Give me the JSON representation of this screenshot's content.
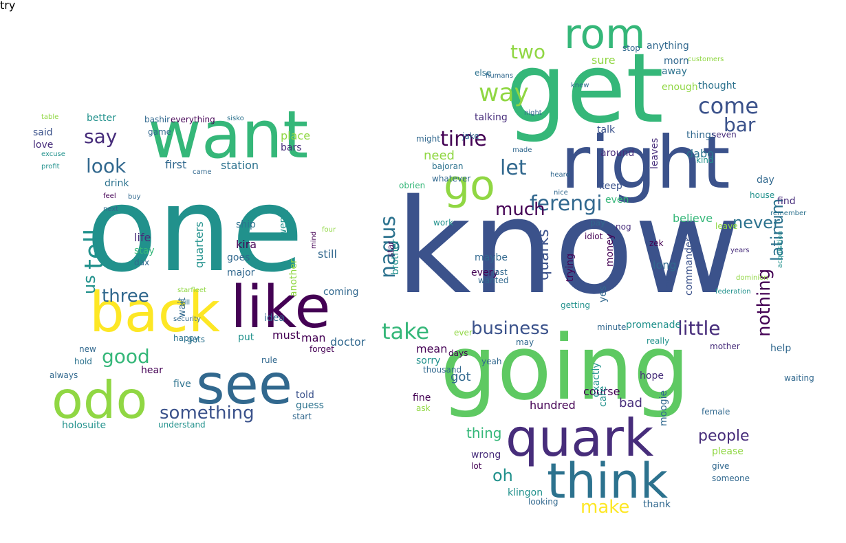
{
  "colors": {
    "background": "#ffffff",
    "palette": [
      "#3b528b",
      "#21918c",
      "#5ec962",
      "#fde725",
      "#440154",
      "#31688e",
      "#35b779",
      "#90d743",
      "#472d7b",
      "#2c728e"
    ]
  },
  "words": [
    {
      "text": "know",
      "color": 0
    },
    {
      "text": "one",
      "color": 1
    },
    {
      "text": "get",
      "color": 6
    },
    {
      "text": "going",
      "color": 2
    },
    {
      "text": "right",
      "color": 0
    },
    {
      "text": "want",
      "color": 6
    },
    {
      "text": "like",
      "color": 4
    },
    {
      "text": "back",
      "color": 3
    },
    {
      "text": "see",
      "color": 5
    },
    {
      "text": "odo",
      "color": 7
    },
    {
      "text": "quark",
      "color": 8
    },
    {
      "text": "think",
      "color": 9
    },
    {
      "text": "rom",
      "color": 6
    },
    {
      "text": "go",
      "color": 7
    },
    {
      "text": "ferengi",
      "color": 5
    },
    {
      "text": "time",
      "color": 4
    },
    {
      "text": "way",
      "color": 7
    },
    {
      "text": "come",
      "color": 0
    },
    {
      "text": "bar",
      "color": 0
    },
    {
      "text": "two",
      "color": 7
    },
    {
      "text": "let",
      "color": 5
    },
    {
      "text": "much",
      "color": 4
    },
    {
      "text": "never",
      "color": 9
    },
    {
      "text": "nagus",
      "color": 9
    },
    {
      "text": "take",
      "color": 6
    },
    {
      "text": "business",
      "color": 0
    },
    {
      "text": "little",
      "color": 8
    },
    {
      "text": "nothing",
      "color": 4
    },
    {
      "text": "latinum",
      "color": 9
    },
    {
      "text": "quarks",
      "color": 0
    },
    {
      "text": "say",
      "color": 8
    },
    {
      "text": "look",
      "color": 5
    },
    {
      "text": "tell",
      "color": 1
    },
    {
      "text": "us",
      "color": 1
    },
    {
      "text": "three",
      "color": 5
    },
    {
      "text": "good",
      "color": 6
    },
    {
      "text": "something",
      "color": 0
    },
    {
      "text": "make",
      "color": 3
    },
    {
      "text": "oh",
      "color": 1
    },
    {
      "text": "people",
      "color": 8
    },
    {
      "text": "thing",
      "color": 6
    },
    {
      "text": "need",
      "color": 7
    },
    {
      "text": "station",
      "color": 9
    },
    {
      "text": "first",
      "color": 5
    },
    {
      "text": "drink",
      "color": 9
    },
    {
      "text": "said",
      "color": 0
    },
    {
      "text": "love",
      "color": 8
    },
    {
      "text": "better",
      "color": 1
    },
    {
      "text": "place",
      "color": 7
    },
    {
      "text": "bars",
      "color": 8
    },
    {
      "text": "twenty",
      "color": 1
    },
    {
      "text": "quarters",
      "color": 1
    },
    {
      "text": "ship",
      "color": 9
    },
    {
      "text": "kira",
      "color": 4
    },
    {
      "text": "goes",
      "color": 5
    },
    {
      "text": "major",
      "color": 5
    },
    {
      "text": "life",
      "color": 8
    },
    {
      "text": "stay",
      "color": 6
    },
    {
      "text": "dax",
      "color": 5
    },
    {
      "text": "still",
      "color": 5
    },
    {
      "text": "another",
      "color": 7
    },
    {
      "text": "brother",
      "color": 1
    },
    {
      "text": "coming",
      "color": 5
    },
    {
      "text": "idea",
      "color": 5
    },
    {
      "text": "wait",
      "color": 5
    },
    {
      "text": "must",
      "color": 4
    },
    {
      "text": "man",
      "color": 4
    },
    {
      "text": "doctor",
      "color": 5
    },
    {
      "text": "put",
      "color": 1
    },
    {
      "text": "happy",
      "color": 9
    },
    {
      "text": "gets",
      "color": 9
    },
    {
      "text": "hear",
      "color": 4
    },
    {
      "text": "five",
      "color": 9
    },
    {
      "text": "told",
      "color": 0
    },
    {
      "text": "guess",
      "color": 9
    },
    {
      "text": "holosuite",
      "color": 1
    },
    {
      "text": "understand",
      "color": 1
    },
    {
      "text": "always",
      "color": 5
    },
    {
      "text": "new",
      "color": 5
    },
    {
      "text": "hold",
      "color": 9
    },
    {
      "text": "rule",
      "color": 5
    },
    {
      "text": "start",
      "color": 5
    },
    {
      "text": "mean",
      "color": 4
    },
    {
      "text": "sorry",
      "color": 1
    },
    {
      "text": "got",
      "color": 5
    },
    {
      "text": "fine",
      "color": 4
    },
    {
      "text": "ask",
      "color": 7
    },
    {
      "text": "wrong",
      "color": 8
    },
    {
      "text": "lot",
      "color": 4
    },
    {
      "text": "klingon",
      "color": 1
    },
    {
      "text": "looking",
      "color": 5
    },
    {
      "text": "hundred",
      "color": 4
    },
    {
      "text": "course",
      "color": 4
    },
    {
      "text": "care",
      "color": 1
    },
    {
      "text": "moogie",
      "color": 5
    },
    {
      "text": "exactly",
      "color": 1
    },
    {
      "text": "bad",
      "color": 8
    },
    {
      "text": "hope",
      "color": 8
    },
    {
      "text": "please",
      "color": 7
    },
    {
      "text": "give",
      "color": 5
    },
    {
      "text": "someone",
      "color": 5
    },
    {
      "text": "thank",
      "color": 5
    },
    {
      "text": "female",
      "color": 5
    },
    {
      "text": "help",
      "color": 5
    },
    {
      "text": "commander",
      "color": 0
    },
    {
      "text": "long",
      "color": 5
    },
    {
      "text": "ten",
      "color": 0
    },
    {
      "text": "believe",
      "color": 6
    },
    {
      "text": "find",
      "color": 8
    },
    {
      "text": "day",
      "color": 5
    },
    {
      "text": "keep",
      "color": 0
    },
    {
      "text": "even",
      "color": 6
    },
    {
      "text": "around",
      "color": 8
    },
    {
      "text": "dabo",
      "color": 9
    },
    {
      "text": "leaves",
      "color": 8
    },
    {
      "text": "things",
      "color": 5
    },
    {
      "text": "talk",
      "color": 0
    },
    {
      "text": "talking",
      "color": 8
    },
    {
      "text": "thought",
      "color": 9
    },
    {
      "text": "enough",
      "color": 7
    },
    {
      "text": "away",
      "color": 9
    },
    {
      "text": "morn",
      "color": 5
    },
    {
      "text": "sure",
      "color": 7
    },
    {
      "text": "anything",
      "color": 5
    },
    {
      "text": "stop",
      "color": 5
    },
    {
      "text": "else",
      "color": 9
    },
    {
      "text": "every",
      "color": 4
    },
    {
      "text": "maybe",
      "color": 5
    },
    {
      "text": "yes",
      "color": 5
    },
    {
      "text": "money",
      "color": 4
    },
    {
      "text": "trying",
      "color": 4
    },
    {
      "text": "promenade",
      "color": 1
    },
    {
      "text": "really",
      "color": 1
    },
    {
      "text": "work",
      "color": 1
    },
    {
      "text": "nog",
      "color": 8
    },
    {
      "text": "obrien",
      "color": 6
    },
    {
      "text": "might",
      "color": 5
    },
    {
      "text": "kind",
      "color": 1
    },
    {
      "text": "seven",
      "color": 8
    },
    {
      "text": "zek",
      "color": 4
    },
    {
      "text": "forget",
      "color": 4
    },
    {
      "text": "bashir",
      "color": 5
    },
    {
      "text": "everything",
      "color": 4
    },
    {
      "text": "sisko",
      "color": 9
    },
    {
      "text": "table",
      "color": 7
    },
    {
      "text": "excuse",
      "color": 1
    },
    {
      "text": "profit",
      "color": 1
    },
    {
      "text": "came",
      "color": 5
    },
    {
      "text": "next",
      "color": 5
    },
    {
      "text": "feel",
      "color": 4
    },
    {
      "text": "buy",
      "color": 5
    },
    {
      "text": "four",
      "color": 7
    },
    {
      "text": "mind",
      "color": 4
    },
    {
      "text": "starfleet",
      "color": 7
    },
    {
      "text": "kill",
      "color": 9
    },
    {
      "text": "security",
      "color": 5
    },
    {
      "text": "years",
      "color": 8
    },
    {
      "text": "federation",
      "color": 1
    },
    {
      "text": "acquisition",
      "color": 1
    },
    {
      "text": "whatever",
      "color": 5
    },
    {
      "text": "bajoran",
      "color": 9
    },
    {
      "text": "remember",
      "color": 9
    },
    {
      "text": "house",
      "color": 1
    },
    {
      "text": "getting",
      "color": 1
    },
    {
      "text": "heard",
      "color": 5
    },
    {
      "text": "nice",
      "color": 5
    },
    {
      "text": "humans",
      "color": 5
    },
    {
      "text": "knew",
      "color": 5
    },
    {
      "text": "made",
      "color": 5
    },
    {
      "text": "night",
      "color": 5
    },
    {
      "text": "jake",
      "color": 5
    },
    {
      "text": "leave",
      "color": 7
    },
    {
      "text": "ever",
      "color": 7
    },
    {
      "text": "days",
      "color": 4
    },
    {
      "text": "may",
      "color": 5
    },
    {
      "text": "yeah",
      "color": 5
    },
    {
      "text": "wanted",
      "color": 5
    },
    {
      "text": "last",
      "color": 5
    },
    {
      "text": "minute",
      "color": 5
    },
    {
      "text": "thousand",
      "color": 5
    },
    {
      "text": "mother",
      "color": 8
    },
    {
      "text": "waiting",
      "color": 5
    },
    {
      "text": "pay",
      "color": 5
    },
    {
      "text": "idiot",
      "color": 4
    },
    {
      "text": "star",
      "color": 4
    },
    {
      "text": "customers",
      "color": 7
    },
    {
      "text": "dominion",
      "color": 7
    },
    {
      "text": "game",
      "color": 5
    },
    {
      "text": "try",
      "color": 5
    }
  ]
}
